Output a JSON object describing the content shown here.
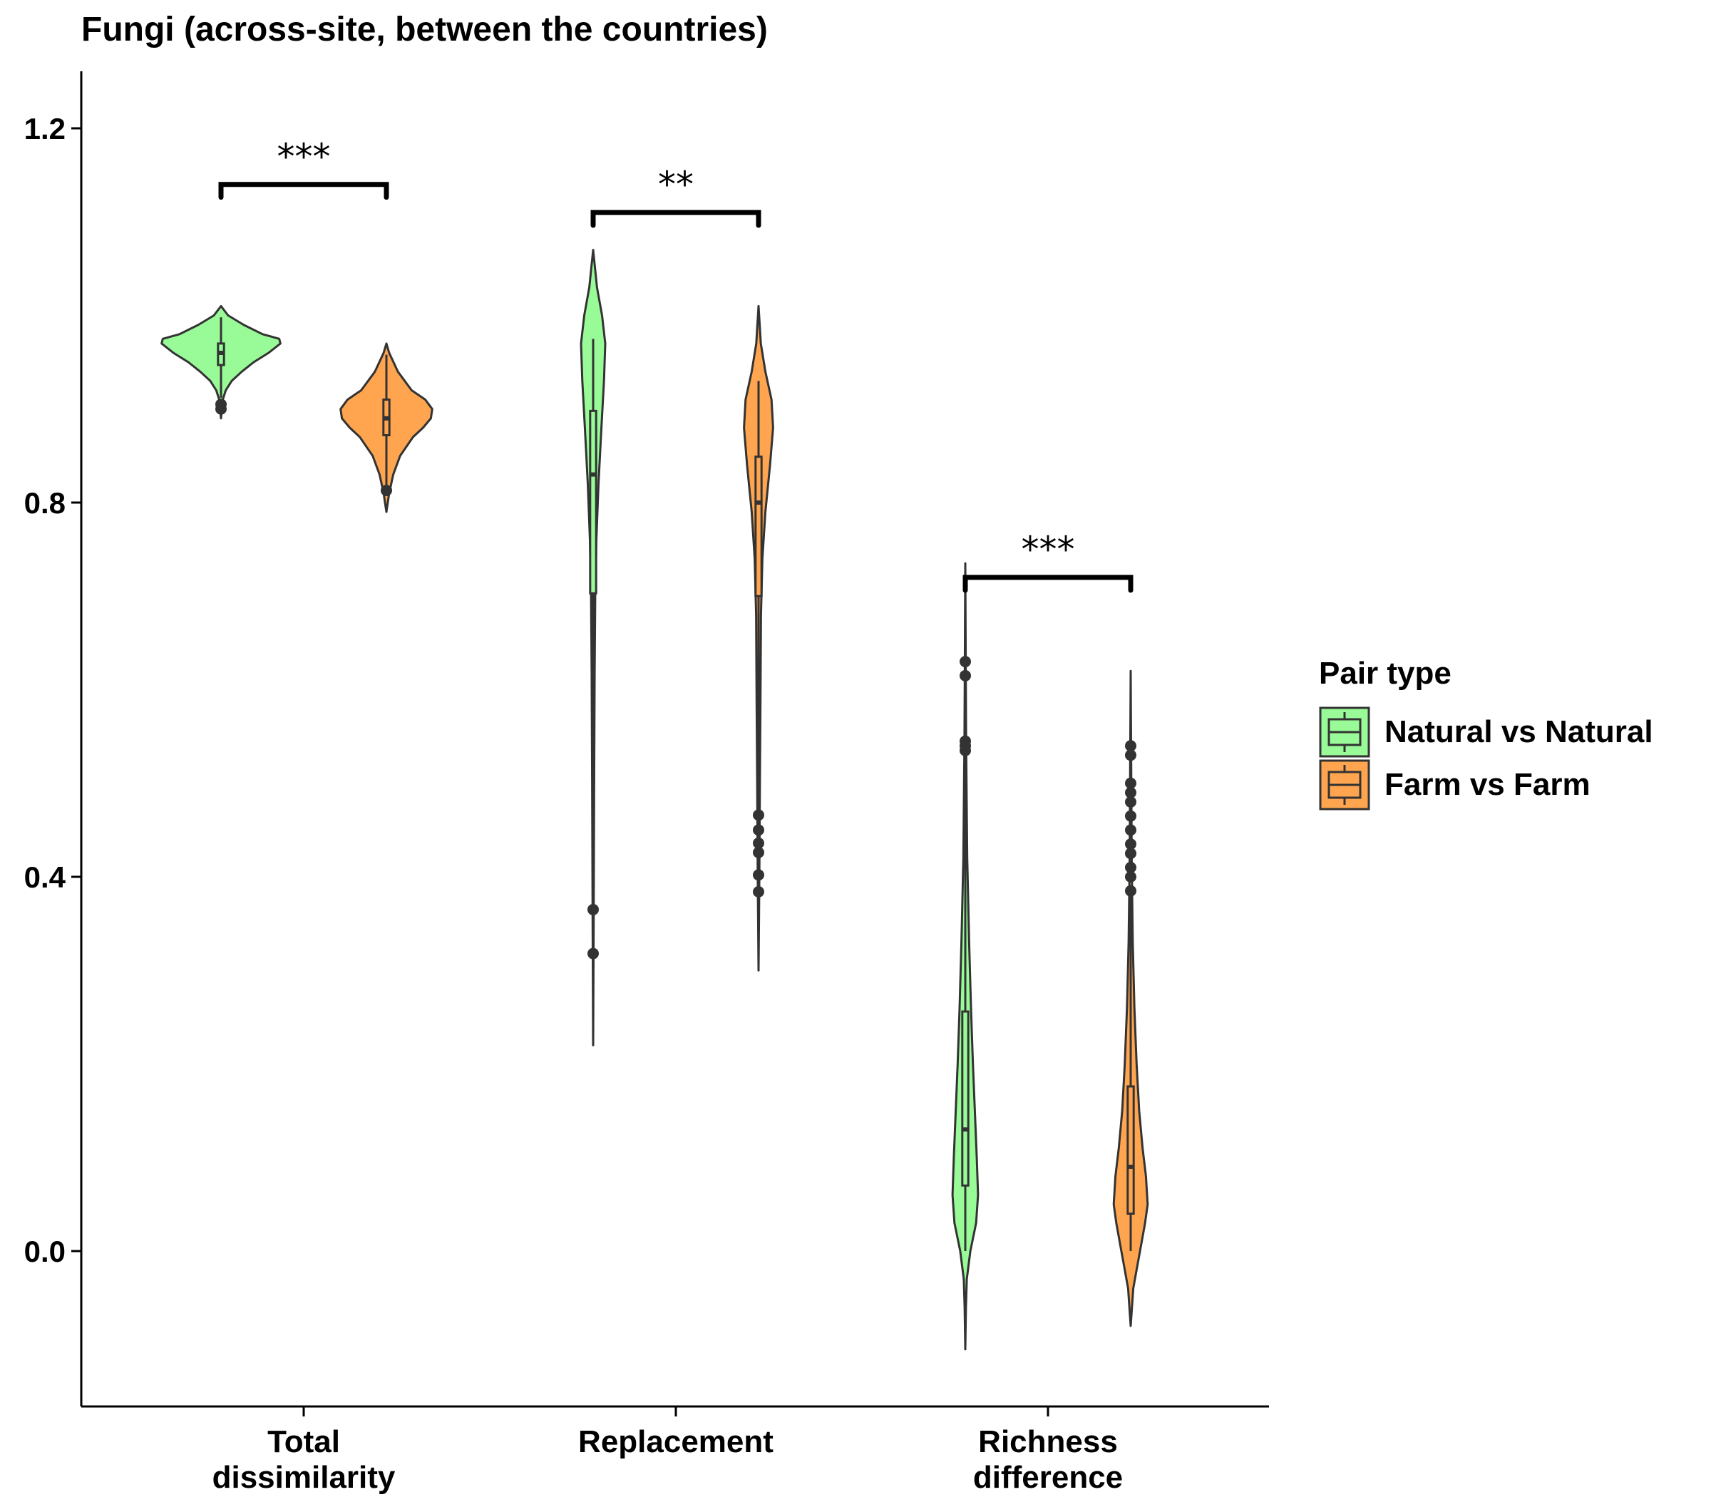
{
  "chart_data": {
    "type": "violin",
    "title": "Fungi (across-site, between the countries)",
    "xlabel": "",
    "ylabel": "",
    "ylim": [
      -0.17,
      1.26
    ],
    "yticks": [
      0.0,
      0.4,
      0.8,
      1.2
    ],
    "ytick_labels": [
      "0.0",
      "0.4",
      "0.8",
      "1.2"
    ],
    "categories": [
      {
        "label_lines": [
          "Total",
          "dissimilarity"
        ]
      },
      {
        "label_lines": [
          "Replacement"
        ]
      },
      {
        "label_lines": [
          "Richness",
          "difference"
        ]
      }
    ],
    "legend": {
      "title": "Pair type",
      "position": "right",
      "items": [
        {
          "label": "Natural vs Natural",
          "color": "#98FB98"
        },
        {
          "label": "Farm vs Farm",
          "color": "#FFA54F"
        }
      ]
    },
    "series": [
      {
        "name": "Natural vs Natural",
        "color": "#98FB98",
        "groups": [
          {
            "violin_min": 0.89,
            "violin_max": 1.01,
            "violin_halfwidth": 0.35,
            "density": [
              [
                0.89,
                0.0
              ],
              [
                0.91,
                0.03
              ],
              [
                0.92,
                0.08
              ],
              [
                0.93,
                0.18
              ],
              [
                0.94,
                0.35
              ],
              [
                0.95,
                0.55
              ],
              [
                0.96,
                0.8
              ],
              [
                0.97,
                1.0
              ],
              [
                0.975,
                0.98
              ],
              [
                0.98,
                0.7
              ],
              [
                0.99,
                0.38
              ],
              [
                1.0,
                0.12
              ],
              [
                1.01,
                0.0
              ]
            ],
            "box": {
              "q1": 0.947,
              "median": 0.96,
              "q3": 0.97,
              "whisker_low": 0.912,
              "whisker_high": 0.998
            },
            "outliers": [
              0.9,
              0.905
            ],
            "box_halfwidth": 0.08
          },
          {
            "violin_min": 0.22,
            "violin_max": 1.07,
            "violin_halfwidth": 0.075,
            "density": [
              [
                0.22,
                0.0
              ],
              [
                0.35,
                0.04
              ],
              [
                0.5,
                0.08
              ],
              [
                0.62,
                0.12
              ],
              [
                0.7,
                0.16
              ],
              [
                0.76,
                0.25
              ],
              [
                0.82,
                0.42
              ],
              [
                0.88,
                0.65
              ],
              [
                0.93,
                0.85
              ],
              [
                0.97,
                0.95
              ],
              [
                1.0,
                0.7
              ],
              [
                1.03,
                0.3
              ],
              [
                1.07,
                0.0
              ]
            ],
            "box": {
              "q1": 0.703,
              "median": 0.83,
              "q3": 0.898,
              "whisker_low": 0.22,
              "whisker_high": 0.975
            },
            "outliers": [
              0.365,
              0.318
            ],
            "box_halfwidth": 0.08
          },
          {
            "violin_min": -0.105,
            "violin_max": 0.735,
            "violin_halfwidth": 0.075,
            "density": [
              [
                -0.105,
                0.0
              ],
              [
                -0.06,
                0.05
              ],
              [
                -0.03,
                0.12
              ],
              [
                0.0,
                0.4
              ],
              [
                0.03,
                0.85
              ],
              [
                0.06,
                1.0
              ],
              [
                0.1,
                0.9
              ],
              [
                0.15,
                0.75
              ],
              [
                0.2,
                0.6
              ],
              [
                0.26,
                0.45
              ],
              [
                0.33,
                0.3
              ],
              [
                0.42,
                0.15
              ],
              [
                0.55,
                0.06
              ],
              [
                0.65,
                0.03
              ],
              [
                0.735,
                0.0
              ]
            ],
            "box": {
              "q1": 0.07,
              "median": 0.13,
              "q3": 0.256,
              "whisker_low": 0.0,
              "whisker_high": 0.735
            },
            "outliers": [
              0.63,
              0.615,
              0.545,
              0.54,
              0.535
            ],
            "box_halfwidth": 0.08
          }
        ]
      },
      {
        "name": "Farm vs Farm",
        "color": "#FFA54F",
        "groups": [
          {
            "violin_min": 0.79,
            "violin_max": 0.97,
            "violin_halfwidth": 0.27,
            "density": [
              [
                0.79,
                0.0
              ],
              [
                0.81,
                0.06
              ],
              [
                0.83,
                0.15
              ],
              [
                0.85,
                0.3
              ],
              [
                0.87,
                0.58
              ],
              [
                0.88,
                0.8
              ],
              [
                0.89,
                0.97
              ],
              [
                0.9,
                1.0
              ],
              [
                0.91,
                0.85
              ],
              [
                0.92,
                0.55
              ],
              [
                0.94,
                0.25
              ],
              [
                0.96,
                0.06
              ],
              [
                0.97,
                0.0
              ]
            ],
            "box": {
              "q1": 0.872,
              "median": 0.89,
              "q3": 0.91,
              "whisker_low": 0.818,
              "whisker_high": 0.958
            },
            "outliers": [
              0.813
            ],
            "box_halfwidth": 0.08
          },
          {
            "violin_min": 0.3,
            "violin_max": 1.01,
            "violin_halfwidth": 0.09,
            "density": [
              [
                0.3,
                0.0
              ],
              [
                0.4,
                0.05
              ],
              [
                0.5,
                0.09
              ],
              [
                0.6,
                0.13
              ],
              [
                0.68,
                0.16
              ],
              [
                0.74,
                0.25
              ],
              [
                0.79,
                0.45
              ],
              [
                0.84,
                0.75
              ],
              [
                0.88,
                0.95
              ],
              [
                0.91,
                0.85
              ],
              [
                0.94,
                0.45
              ],
              [
                0.97,
                0.15
              ],
              [
                1.01,
                0.0
              ]
            ],
            "box": {
              "q1": 0.7,
              "median": 0.8,
              "q3": 0.849,
              "whisker_low": 0.3,
              "whisker_high": 0.93
            },
            "outliers": [
              0.466,
              0.45,
              0.436,
              0.426,
              0.402,
              0.384
            ],
            "box_halfwidth": 0.08
          },
          {
            "violin_min": -0.08,
            "violin_max": 0.62,
            "violin_halfwidth": 0.1,
            "density": [
              [
                -0.08,
                0.0
              ],
              [
                -0.04,
                0.15
              ],
              [
                -0.02,
                0.35
              ],
              [
                0.0,
                0.55
              ],
              [
                0.03,
                0.85
              ],
              [
                0.05,
                1.0
              ],
              [
                0.08,
                0.9
              ],
              [
                0.11,
                0.7
              ],
              [
                0.15,
                0.5
              ],
              [
                0.2,
                0.35
              ],
              [
                0.26,
                0.22
              ],
              [
                0.33,
                0.12
              ],
              [
                0.42,
                0.06
              ],
              [
                0.52,
                0.03
              ],
              [
                0.62,
                0.0
              ]
            ],
            "box": {
              "q1": 0.04,
              "median": 0.09,
              "q3": 0.176,
              "whisker_low": 0.0,
              "whisker_high": 0.385
            },
            "outliers": [
              0.54,
              0.53,
              0.5,
              0.49,
              0.48,
              0.465,
              0.45,
              0.435,
              0.425,
              0.41,
              0.4,
              0.385
            ],
            "box_halfwidth": 0.08
          }
        ]
      }
    ],
    "significance": [
      {
        "category_index": 0,
        "label": "***",
        "y": 1.14
      },
      {
        "category_index": 1,
        "label": "**",
        "y": 1.11
      },
      {
        "category_index": 2,
        "label": "***",
        "y": 0.72
      }
    ]
  }
}
